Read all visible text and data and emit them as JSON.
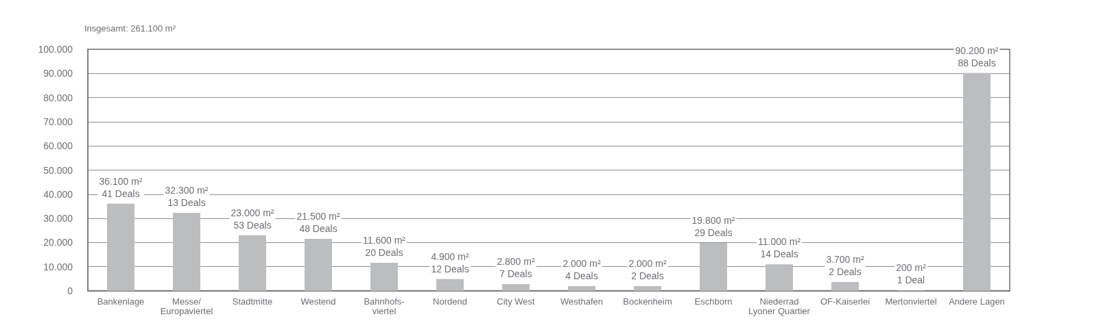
{
  "chart_data": {
    "type": "bar",
    "title": "Insgesamt: 261.100 m²",
    "categories": [
      "Bankenlage",
      "Messe/\nEuropaviertel",
      "Stadtmitte",
      "Westend",
      "Bahnhofs-\nviertel",
      "Nordend",
      "City West",
      "Westhafen",
      "Bockenheim",
      "Eschborn",
      "Niederrad\nLyoner Quartier",
      "OF-Kaiserlei",
      "Mertonviertel",
      "Andere Lagen"
    ],
    "values": [
      36100,
      32300,
      23000,
      21500,
      11600,
      4900,
      2800,
      2000,
      2000,
      19800,
      11000,
      3700,
      200,
      90200
    ],
    "value_labels": [
      "36.100 m²\n41 Deals",
      "32.300 m²\n13 Deals",
      "23.000 m²\n53 Deals",
      "21.500 m²\n48 Deals",
      "11.600 m²\n20 Deals",
      "4.900 m²\n12 Deals",
      "2.800 m²\n7 Deals",
      "2.000 m²\n4 Deals",
      "2.000 m²\n2 Deals",
      "19.800 m²\n29 Deals",
      "11.000 m²\n14 Deals",
      "3.700 m²\n2 Deals",
      "200 m²\n1 Deal",
      "90.200 m²\n88 Deals"
    ],
    "color": "#bcbdbf",
    "ylim": [
      0,
      100000
    ],
    "yticks": [
      0,
      {
        "value": 10000,
        "label": "10.000"
      },
      {
        "value": 20000,
        "label": "20.000"
      },
      {
        "value": 30000,
        "label": "30.000"
      },
      {
        "value": 40000,
        "label": "40.000"
      },
      {
        "value": 50000,
        "label": "50.000"
      },
      {
        "value": 60000,
        "label": "60.000"
      },
      {
        "value": 70000,
        "label": "70.000"
      },
      {
        "value": 80000,
        "label": "80.000"
      },
      {
        "value": 90000,
        "label": "90.000"
      },
      {
        "value": 100000,
        "label": "100.000"
      }
    ],
    "grid": "y"
  }
}
